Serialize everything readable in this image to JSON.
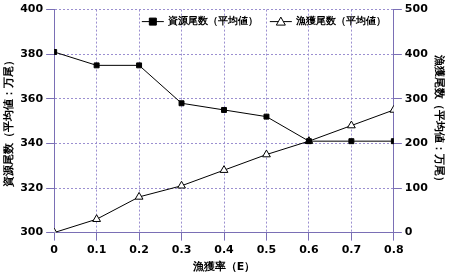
{
  "chart_data": {
    "type": "line",
    "x_label": "漁獲率（E）",
    "y_label": "資源尾数（平均値：万尾）",
    "y2_label": "漁獲尾数（平均値：万尾）",
    "x": [
      0,
      0.1,
      0.2,
      0.3,
      0.4,
      0.5,
      0.6,
      0.7,
      0.8
    ],
    "series": [
      {
        "name": "資源尾数（平均値）",
        "color": "#000000",
        "marker": "square",
        "values": [
          381,
          375,
          375,
          358,
          355,
          352,
          341,
          341,
          341
        ]
      },
      {
        "name": "漁獲尾数（平均値）",
        "color": "#000000",
        "marker": "open-triangle",
        "axis": "y2",
        "values": [
          0,
          30,
          80,
          105,
          140,
          175,
          205,
          240,
          275
        ]
      }
    ],
    "xlim": [
      0,
      0.8
    ],
    "xticks": [
      0,
      0.1,
      0.2,
      0.3,
      0.4,
      0.5,
      0.6,
      0.7,
      0.8
    ],
    "ylim": [
      300,
      400
    ],
    "yticks": [
      300,
      320,
      340,
      360,
      380,
      400
    ],
    "y2lim": [
      0,
      500
    ],
    "y2ticks": [
      0,
      100,
      200,
      300,
      400,
      500
    ],
    "grid": true,
    "legend": "upper right"
  }
}
